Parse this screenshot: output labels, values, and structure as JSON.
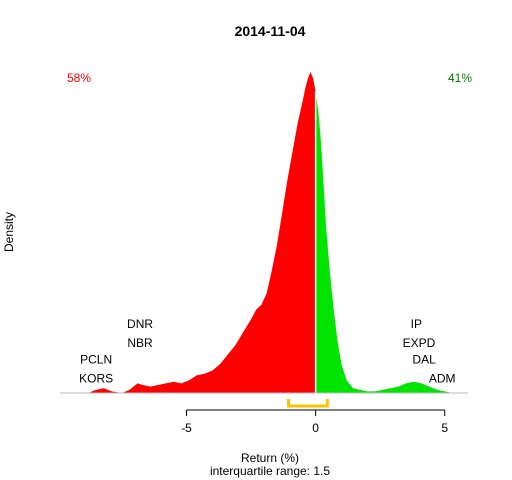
{
  "chart_data": {
    "type": "area",
    "title": "2014-11-04",
    "xlabel": "Return (%)",
    "subtitle": "interquartile range: 1.5",
    "ylabel": "Density",
    "xlim": [
      -9.9,
      5.9
    ],
    "ylim": [
      0,
      1.0
    ],
    "x_ticks": [
      -5,
      0,
      5
    ],
    "x_tick_labels": [
      "-5",
      "0",
      "5"
    ],
    "split_x": 0,
    "pct_negative": "58%",
    "pct_positive": "41%",
    "colors": {
      "negative": "#ff0000",
      "positive": "#00e400",
      "iqr": "#ffc000",
      "negative_text": "#ff0000",
      "positive_text": "#008000",
      "center_line": "#ffffff"
    },
    "iqr_range": [
      -1.05,
      0.45
    ],
    "density": {
      "x": [
        -8.8,
        -8.5,
        -8.2,
        -7.9,
        -7.5,
        -7.2,
        -6.9,
        -6.7,
        -6.4,
        -6.1,
        -5.8,
        -5.5,
        -5.2,
        -4.9,
        -4.6,
        -4.3,
        -4.0,
        -3.7,
        -3.4,
        -3.1,
        -2.8,
        -2.5,
        -2.3,
        -2.1,
        -1.9,
        -1.7,
        -1.5,
        -1.3,
        -1.1,
        -0.9,
        -0.7,
        -0.5,
        -0.4,
        -0.3,
        -0.2,
        -0.1,
        0.0,
        0.1,
        0.2,
        0.3,
        0.4,
        0.55,
        0.7,
        0.85,
        1.0,
        1.2,
        1.45,
        1.7,
        2.0,
        2.3,
        2.6,
        2.9,
        3.2,
        3.5,
        3.8,
        4.1,
        4.4,
        4.7,
        5.0,
        5.3
      ],
      "y": [
        0.0,
        0.01,
        0.015,
        0.005,
        0.0,
        0.01,
        0.03,
        0.025,
        0.02,
        0.025,
        0.03,
        0.035,
        0.03,
        0.04,
        0.055,
        0.06,
        0.07,
        0.09,
        0.12,
        0.15,
        0.19,
        0.23,
        0.26,
        0.275,
        0.31,
        0.38,
        0.46,
        0.56,
        0.66,
        0.75,
        0.84,
        0.91,
        0.95,
        0.98,
        1.0,
        0.98,
        0.94,
        0.88,
        0.79,
        0.66,
        0.52,
        0.38,
        0.26,
        0.16,
        0.09,
        0.04,
        0.015,
        0.01,
        0.005,
        0.005,
        0.01,
        0.015,
        0.02,
        0.03,
        0.035,
        0.03,
        0.02,
        0.01,
        0.005,
        0.0
      ]
    },
    "annotations_left": [
      {
        "label": "DNR",
        "x": -6.8,
        "y": 0.215
      },
      {
        "label": "NBR",
        "x": -6.8,
        "y": 0.155
      },
      {
        "label": "PCLN",
        "x": -8.5,
        "y": 0.105
      },
      {
        "label": "KORS",
        "x": -8.5,
        "y": 0.045
      }
    ],
    "annotations_right": [
      {
        "label": "IP",
        "x": 3.9,
        "y": 0.215
      },
      {
        "label": "EXPD",
        "x": 4.0,
        "y": 0.155
      },
      {
        "label": "DAL",
        "x": 4.2,
        "y": 0.105
      },
      {
        "label": "ADM",
        "x": 4.9,
        "y": 0.045
      }
    ]
  }
}
